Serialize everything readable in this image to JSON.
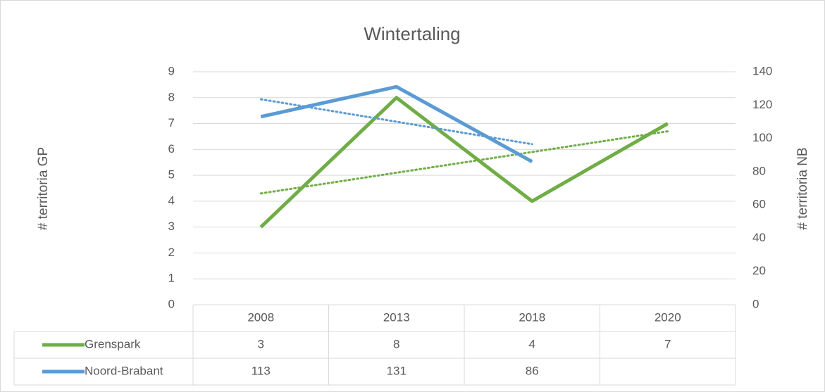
{
  "chart_data": {
    "type": "line",
    "title": "Wintertaling",
    "categories": [
      "2008",
      "2013",
      "2018",
      "2020"
    ],
    "series": [
      {
        "name": "Grenspark",
        "color": "#70ad47",
        "values": [
          3,
          8,
          4,
          7
        ]
      },
      {
        "name": "Noord-Brabant",
        "color": "#5b9bd5",
        "values": [
          113,
          131,
          86,
          null
        ],
        "axis": "y2"
      }
    ],
    "ylabel": "# territoria GP",
    "y2label": "# territoria NB",
    "ylim": [
      0,
      9
    ],
    "yticks": [
      0,
      1,
      2,
      3,
      4,
      5,
      6,
      7,
      8,
      9
    ],
    "y2lim": [
      0,
      140
    ],
    "y2ticks": [
      0,
      20,
      40,
      60,
      80,
      100,
      120,
      140
    ],
    "grid": true,
    "trendline": "linear",
    "data_table": true
  }
}
